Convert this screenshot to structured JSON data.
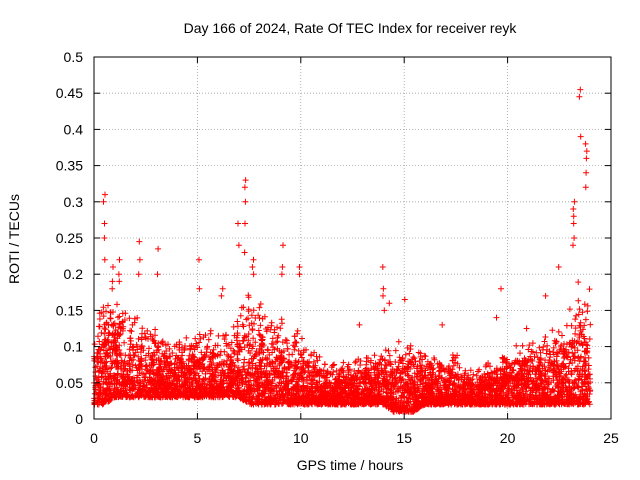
{
  "chart_data": {
    "type": "scatter",
    "title": "Day 166 of 2024, Rate Of TEC Index for receiver reyk",
    "xlabel": "GPS time / hours",
    "ylabel": "ROTI / TECUs",
    "xlim": [
      0,
      25
    ],
    "ylim": [
      0,
      0.5
    ],
    "x_ticks": [
      0,
      5,
      10,
      15,
      20,
      25
    ],
    "x_tick_labels": [
      "0",
      "5",
      "10",
      "15",
      "20",
      "25"
    ],
    "y_ticks": [
      0,
      0.05,
      0.1,
      0.15,
      0.2,
      0.25,
      0.3,
      0.35,
      0.4,
      0.45,
      0.5
    ],
    "y_tick_labels": [
      "0",
      "0.05",
      "0.1",
      "0.15",
      "0.2",
      "0.25",
      "0.3",
      "0.35",
      "0.4",
      "0.45",
      "0.5"
    ],
    "grid": true,
    "marker": "+",
    "series_color": "#ff0000",
    "x_range_of_data": [
      0,
      24
    ],
    "envelope": {
      "x": [
        0,
        0.5,
        1,
        1.5,
        2,
        2.5,
        3,
        3.5,
        4,
        4.5,
        5,
        5.5,
        6,
        6.5,
        7,
        7.5,
        8,
        8.5,
        9,
        9.5,
        10,
        10.5,
        11,
        11.5,
        12,
        12.5,
        13,
        13.5,
        14,
        14.5,
        15,
        15.5,
        16,
        16.5,
        17,
        17.5,
        18,
        18.5,
        19,
        19.5,
        20,
        20.5,
        21,
        21.5,
        22,
        22.5,
        23,
        23.5,
        24
      ],
      "y_min": [
        0.02,
        0.02,
        0.03,
        0.03,
        0.03,
        0.03,
        0.03,
        0.03,
        0.03,
        0.03,
        0.03,
        0.03,
        0.03,
        0.03,
        0.03,
        0.02,
        0.02,
        0.02,
        0.02,
        0.02,
        0.02,
        0.02,
        0.02,
        0.02,
        0.02,
        0.02,
        0.02,
        0.02,
        0.02,
        0.01,
        0.01,
        0.01,
        0.02,
        0.02,
        0.02,
        0.02,
        0.02,
        0.02,
        0.02,
        0.02,
        0.02,
        0.02,
        0.02,
        0.02,
        0.02,
        0.02,
        0.02,
        0.02,
        0.02
      ],
      "y_typ": [
        0.12,
        0.15,
        0.15,
        0.14,
        0.13,
        0.12,
        0.11,
        0.1,
        0.1,
        0.11,
        0.11,
        0.11,
        0.11,
        0.11,
        0.13,
        0.16,
        0.14,
        0.13,
        0.14,
        0.12,
        0.11,
        0.09,
        0.08,
        0.07,
        0.07,
        0.08,
        0.08,
        0.08,
        0.09,
        0.1,
        0.1,
        0.09,
        0.09,
        0.08,
        0.08,
        0.08,
        0.07,
        0.07,
        0.07,
        0.08,
        0.08,
        0.09,
        0.1,
        0.1,
        0.11,
        0.12,
        0.13,
        0.17,
        0.16
      ]
    },
    "spikes": [
      {
        "x": 0.5,
        "y": [
          0.31,
          0.3,
          0.27,
          0.25,
          0.22
        ]
      },
      {
        "x": 0.9,
        "y": [
          0.21,
          0.19,
          0.18
        ]
      },
      {
        "x": 1.2,
        "y": [
          0.22,
          0.2,
          0.19
        ]
      },
      {
        "x": 2.2,
        "y": [
          0.245,
          0.22,
          0.2
        ]
      },
      {
        "x": 3.1,
        "y": [
          0.235,
          0.2
        ]
      },
      {
        "x": 5.1,
        "y": [
          0.22,
          0.18
        ]
      },
      {
        "x": 6.2,
        "y": [
          0.18,
          0.17
        ]
      },
      {
        "x": 7.0,
        "y": [
          0.27,
          0.24
        ]
      },
      {
        "x": 7.3,
        "y": [
          0.33,
          0.32,
          0.3,
          0.27,
          0.23
        ]
      },
      {
        "x": 7.7,
        "y": [
          0.22,
          0.21,
          0.2
        ]
      },
      {
        "x": 9.1,
        "y": [
          0.24,
          0.21,
          0.2
        ]
      },
      {
        "x": 9.9,
        "y": [
          0.21,
          0.2
        ]
      },
      {
        "x": 12.8,
        "y": [
          0.13
        ]
      },
      {
        "x": 14.0,
        "y": [
          0.21,
          0.18,
          0.17,
          0.15
        ]
      },
      {
        "x": 14.3,
        "y": [
          0.16
        ]
      },
      {
        "x": 15.0,
        "y": [
          0.165
        ]
      },
      {
        "x": 16.8,
        "y": [
          0.13
        ]
      },
      {
        "x": 19.5,
        "y": [
          0.14
        ]
      },
      {
        "x": 19.7,
        "y": [
          0.18
        ]
      },
      {
        "x": 20.9,
        "y": [
          0.125
        ]
      },
      {
        "x": 21.8,
        "y": [
          0.17
        ]
      },
      {
        "x": 22.5,
        "y": [
          0.21
        ]
      },
      {
        "x": 23.2,
        "y": [
          0.3,
          0.29,
          0.28,
          0.27,
          0.25,
          0.24
        ]
      },
      {
        "x": 23.5,
        "y": [
          0.455,
          0.445,
          0.39
        ]
      },
      {
        "x": 23.8,
        "y": [
          0.38,
          0.37,
          0.36,
          0.34,
          0.32
        ]
      }
    ]
  }
}
